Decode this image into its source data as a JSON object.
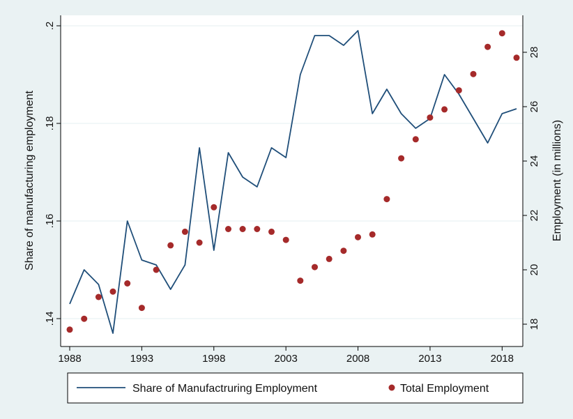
{
  "chart_data": {
    "type": "line",
    "title": "",
    "xlabel": "",
    "ylabel_left": "Share of manufacturing employment",
    "ylabel_right": "Employment (in millions)",
    "x_ticks": [
      "1988",
      "1993",
      "1998",
      "2003",
      "2008",
      "2013",
      "2018"
    ],
    "y_left_ticks": [
      ".14",
      ".16",
      ".18",
      ".2"
    ],
    "y_right_ticks": [
      "18",
      "20",
      "22",
      "24",
      "26",
      "28"
    ],
    "x_range": [
      1988,
      2019
    ],
    "y_left_range": [
      0.14,
      0.2
    ],
    "y_right_range": [
      18,
      28
    ],
    "grid": true,
    "legend_position": "bottom",
    "colors": {
      "line": "#1f4e79",
      "dots": "#a52a2a",
      "background": "#eaf2f3",
      "plot": "#ffffff",
      "grid": "#eaf2f3"
    },
    "series": [
      {
        "name": "Share of Manufactruring Employment",
        "axis": "left",
        "mark": "line",
        "x": [
          1988,
          1989,
          1990,
          1991,
          1992,
          1993,
          1994,
          1995,
          1996,
          1997,
          1998,
          1999,
          2000,
          2001,
          2002,
          2003,
          2004,
          2005,
          2006,
          2007,
          2008,
          2009,
          2010,
          2011,
          2012,
          2013,
          2014,
          2015,
          2016,
          2017,
          2018,
          2019
        ],
        "values": [
          0.143,
          0.15,
          0.147,
          0.137,
          0.16,
          0.152,
          0.151,
          0.146,
          0.151,
          0.175,
          0.154,
          0.174,
          0.169,
          0.167,
          0.175,
          0.173,
          0.19,
          0.198,
          0.198,
          0.196,
          0.199,
          0.182,
          0.187,
          0.182,
          0.179,
          0.181,
          0.19,
          0.186,
          0.181,
          0.176,
          0.182,
          0.183
        ]
      },
      {
        "name": "Total Employment",
        "axis": "right",
        "mark": "dot",
        "x": [
          1988,
          1989,
          1990,
          1991,
          1992,
          1993,
          1994,
          1995,
          1996,
          1997,
          1998,
          1999,
          2000,
          2001,
          2002,
          2003,
          2004,
          2005,
          2006,
          2007,
          2008,
          2009,
          2010,
          2011,
          2012,
          2013,
          2014,
          2015,
          2016,
          2017,
          2018,
          2019
        ],
        "values": [
          17.8,
          18.2,
          19.0,
          19.2,
          19.5,
          18.6,
          20.0,
          20.9,
          21.4,
          21.0,
          22.3,
          21.5,
          21.5,
          21.5,
          21.4,
          21.1,
          19.6,
          20.1,
          20.4,
          20.7,
          21.2,
          21.3,
          22.6,
          24.1,
          24.8,
          25.6,
          25.9,
          26.6,
          27.2,
          28.2,
          28.7,
          27.8
        ]
      }
    ]
  }
}
